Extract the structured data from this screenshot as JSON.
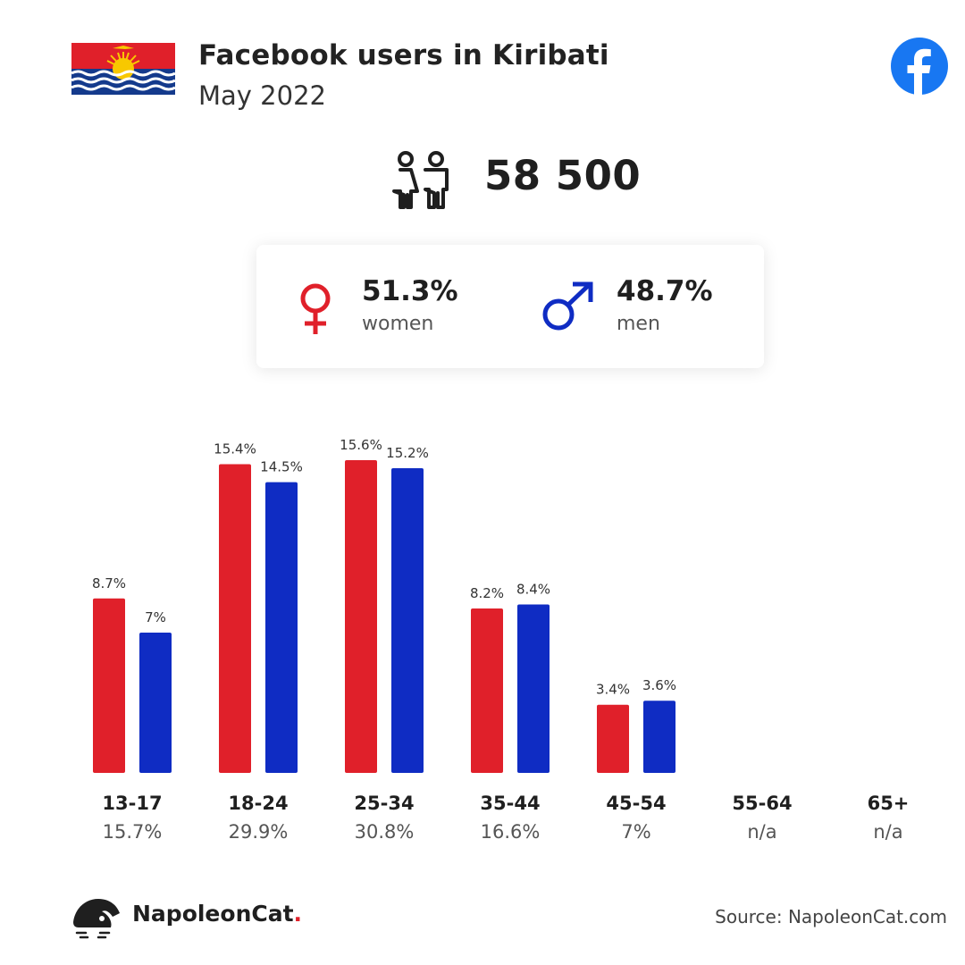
{
  "header": {
    "title": "Facebook users in Kiribati",
    "subtitle": "May 2022"
  },
  "summary": {
    "total_users": "58 500",
    "women_pct": "51.3%",
    "women_label": "women",
    "men_pct": "48.7%",
    "men_label": "men"
  },
  "colors": {
    "women": "#e0202a",
    "men": "#0f2cc3",
    "facebook": "#1877f2"
  },
  "icons": {
    "flag": "kiribati-flag-icon",
    "facebook": "facebook-icon",
    "users": "users-icon",
    "female": "female-symbol-icon",
    "male": "male-symbol-icon",
    "brand": "napoleoncat-logo-icon"
  },
  "chart_data": {
    "type": "bar",
    "categories": [
      "13-17",
      "18-24",
      "25-34",
      "35-44",
      "45-54",
      "55-64",
      "65+"
    ],
    "category_totals": [
      "15.7%",
      "29.9%",
      "30.8%",
      "16.6%",
      "7%",
      "n/a",
      "n/a"
    ],
    "series": [
      {
        "name": "women",
        "values": [
          8.7,
          15.4,
          15.6,
          8.2,
          3.4,
          null,
          null
        ],
        "labels": [
          "8.7%",
          "15.4%",
          "15.6%",
          "8.2%",
          "3.4%",
          "",
          ""
        ]
      },
      {
        "name": "men",
        "values": [
          7,
          14.5,
          15.2,
          8.4,
          3.6,
          null,
          null
        ],
        "labels": [
          "7%",
          "14.5%",
          "15.2%",
          "8.4%",
          "3.6%",
          "",
          ""
        ]
      }
    ],
    "title": "",
    "xlabel": "",
    "ylabel": "",
    "grid": false
  },
  "footer": {
    "brand_name": "NapoleonCat",
    "brand_dot": ".",
    "source": "Source: NapoleonCat.com"
  }
}
